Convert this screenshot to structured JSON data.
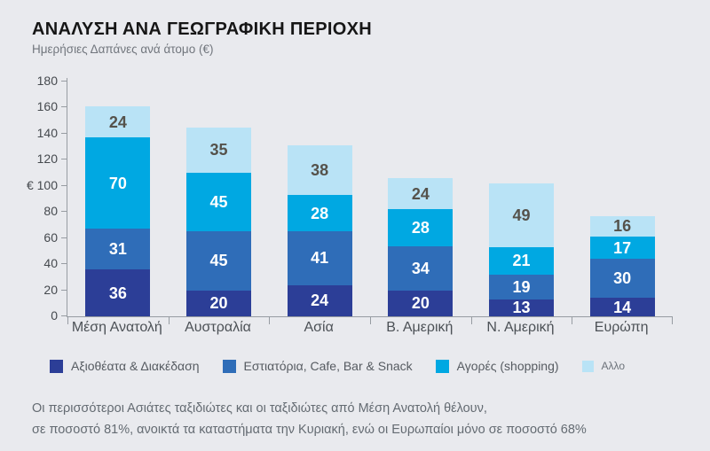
{
  "header": {
    "title": "ΑΝΑΛΥΣΗ ΑΝΑ ΓΕΩΓΡΑΦΙΚΗ ΠΕΡΙΟΧΗ",
    "subtitle": "Ημερήσιες Δαπάνες ανά άτομο (€)"
  },
  "chart_data": {
    "type": "bar",
    "stacked": true,
    "title": "ΑΝΑΛΥΣΗ ΑΝΑ ΓΕΩΓΡΑΦΙΚΗ ΠΕΡΙΟΧΗ",
    "subtitle": "Ημερήσιες Δαπάνες ανά άτομο (€)",
    "categories": [
      "Μέση Ανατολή",
      "Αυστραλία",
      "Ασία",
      "Β. Αμερική",
      "Ν. Αμερική",
      "Ευρώπη"
    ],
    "series": [
      {
        "name": "Αξιοθέατα & Διακέδαση",
        "color": "#2c3e97",
        "label_color": "#ffffff",
        "values": [
          36,
          20,
          24,
          20,
          13,
          14
        ]
      },
      {
        "name": "Εστιατόρια, Cafe, Bar & Snack",
        "color": "#2f6db8",
        "label_color": "#ffffff",
        "values": [
          31,
          45,
          41,
          34,
          19,
          30
        ]
      },
      {
        "name": "Αγορές (shopping)",
        "color": "#00a8e2",
        "label_color": "#ffffff",
        "values": [
          70,
          45,
          28,
          28,
          21,
          17
        ]
      },
      {
        "name": "Αλλο",
        "color": "#b9e3f6",
        "label_color": "#55524b",
        "values": [
          24,
          35,
          38,
          24,
          49,
          16
        ]
      }
    ],
    "totals": [
      161,
      145,
      131,
      106,
      102,
      77
    ],
    "ylabel": "€",
    "ylabel_tick": 100,
    "yticks": [
      0,
      20,
      40,
      60,
      80,
      100,
      120,
      140,
      160,
      180
    ],
    "ylim": [
      0,
      180
    ],
    "grid": false,
    "legend_position": "bottom"
  },
  "footer": {
    "line1": "Οι περισσότεροι Ασιάτες ταξιδιώτες και οι ταξιδιώτες από Μέση Ανατολή θέλουν,",
    "line2": "σε ποσοστό 81%, ανοικτά τα καταστήματα την Κυριακή, ενώ οι Ευρωπαίοι μόνο σε ποσοστό 68%"
  }
}
